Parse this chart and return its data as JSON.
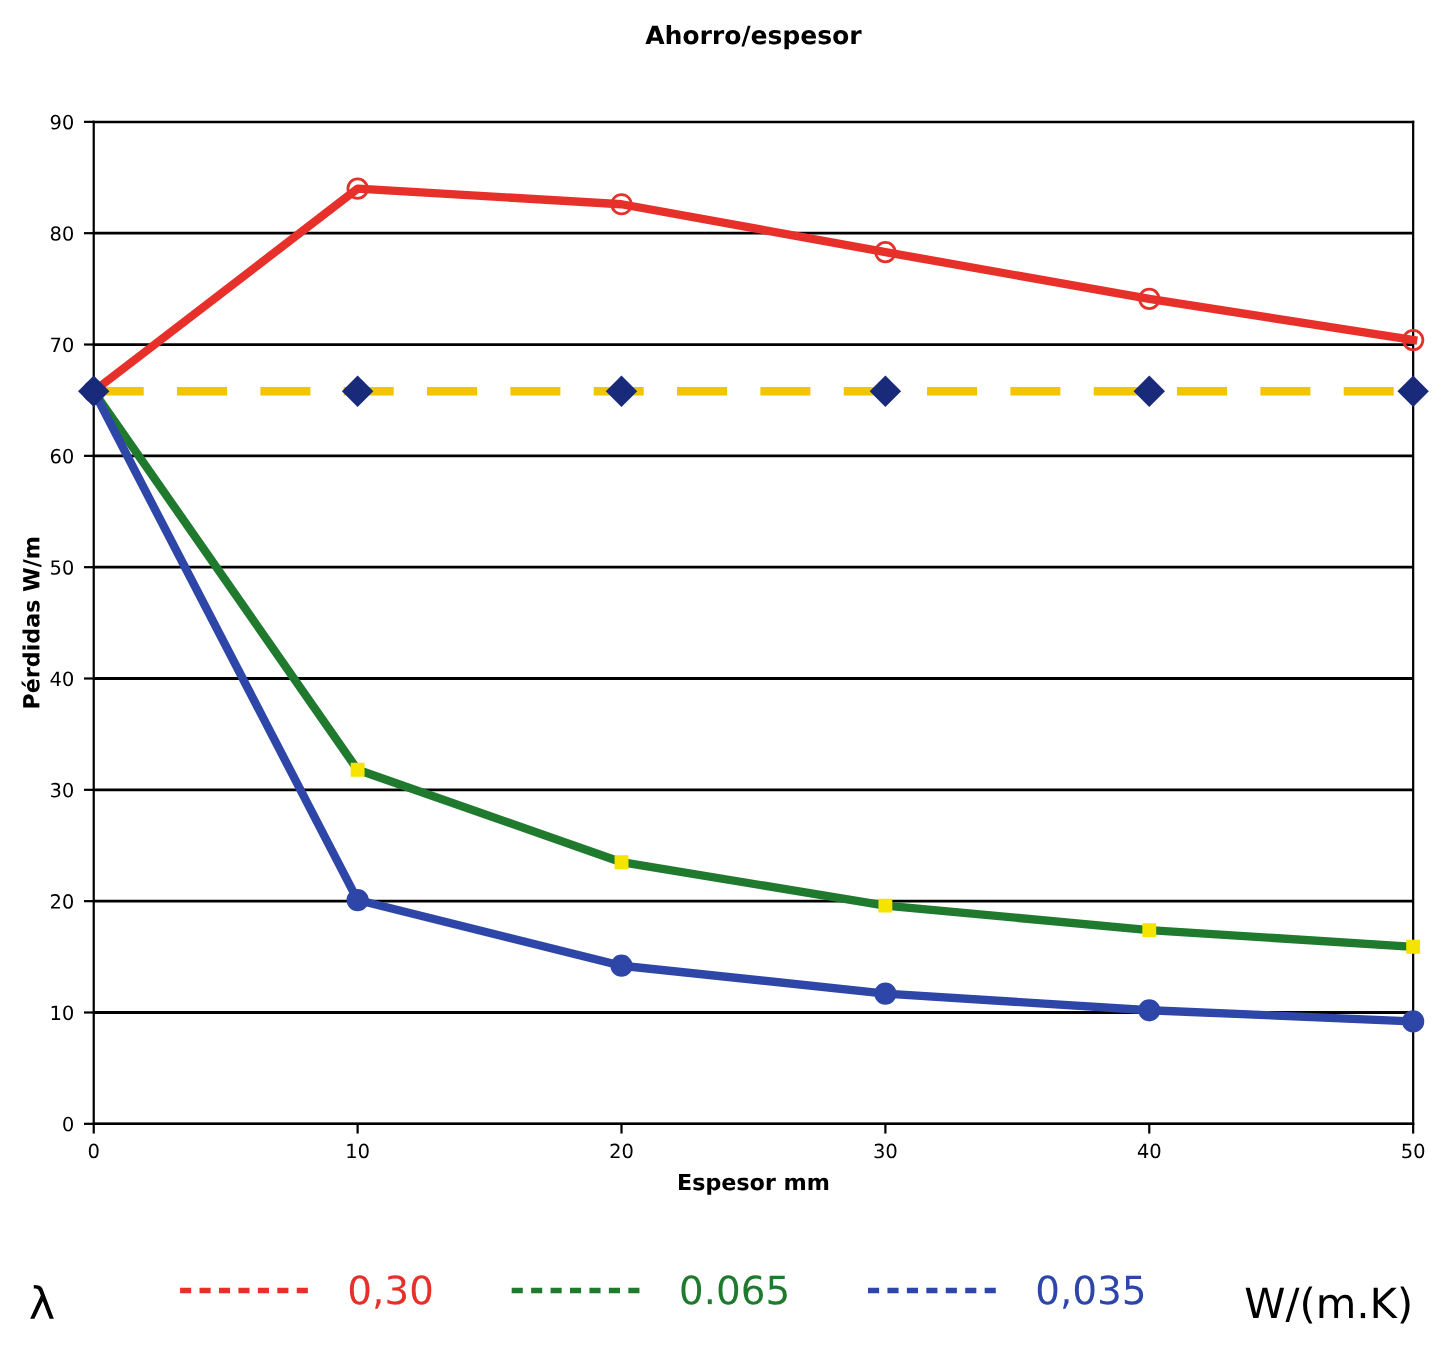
{
  "chart_data": {
    "type": "line",
    "title": "Ahorro/espesor",
    "xlabel": "Espesor mm",
    "ylabel": "Pérdidas W/m",
    "legend_title": "λ",
    "annotations": [
      "W/(m.K)"
    ],
    "x": [
      0,
      10,
      20,
      30,
      40,
      50
    ],
    "series": [
      {
        "name": "0,30",
        "color": "#e8302a",
        "marker": "circle",
        "values": [
          65.8,
          84,
          82.6,
          78.3,
          74.1,
          70.4
        ]
      },
      {
        "color": "#f5c400",
        "marker": "diamond",
        "line_style": "dashed",
        "values": [
          65.8,
          65.8,
          65.8,
          65.8,
          65.8,
          65.8
        ]
      },
      {
        "name": "0.065",
        "color": "#1f7a2e",
        "marker": "square",
        "values": [
          65.8,
          31.8,
          23.5,
          19.6,
          17.4,
          15.9
        ]
      },
      {
        "name": "0,035",
        "color": "#2d46a8",
        "marker": "circle",
        "values": [
          65.8,
          20.1,
          14.2,
          11.7,
          10.2,
          9.2
        ]
      }
    ],
    "xlim": [
      0,
      50
    ],
    "xticks": [
      0,
      10,
      20,
      30,
      40,
      50
    ],
    "ylim": [
      0,
      90
    ],
    "yticks": [
      0,
      10,
      20,
      30,
      40,
      50,
      60,
      70,
      80,
      90
    ],
    "grid": "y",
    "legend": "bottom",
    "line_style": "solid"
  }
}
